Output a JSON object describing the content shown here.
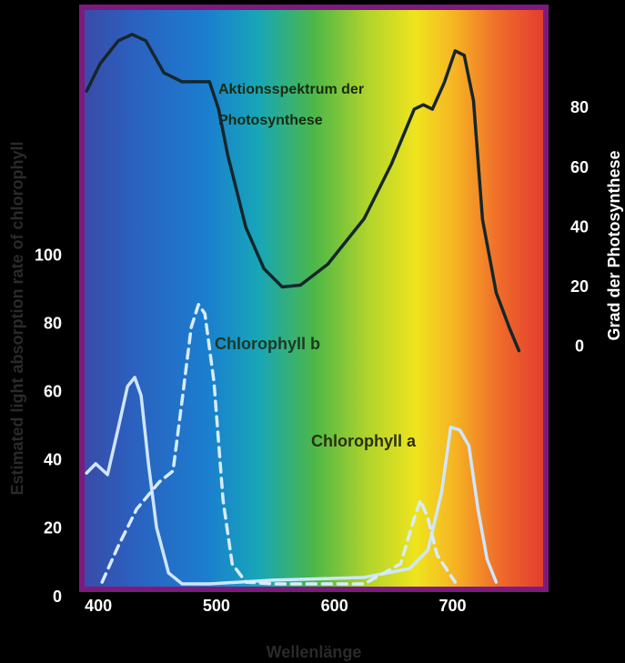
{
  "chart_data": {
    "type": "line",
    "y_label": "Estimated light absorption rate of chlorophyll",
    "y2_label": "Grad der Photosynthese",
    "x_label": "Wellenlänge",
    "annotations": {
      "action": [
        "Aktionsspektrum der",
        "Photosynthese"
      ],
      "chl_b": "Chlorophyll b",
      "chl_a": "Chlorophyll a"
    },
    "xlim": [
      386,
      779
    ],
    "xticks": [
      400,
      500,
      600,
      700
    ],
    "ylim": [
      0,
      173
    ],
    "yticks": [
      0,
      20,
      40,
      60,
      80,
      100
    ],
    "y2lim": [
      -84,
      114
    ],
    "y2ticks": [
      0,
      20,
      40,
      60,
      80
    ],
    "series": [
      {
        "name": "Chlorophyll a",
        "color": "#cfe6ff",
        "dash": false,
        "x": [
          390.0,
          397.7,
          407.7,
          417.0,
          424.7,
          430.8,
          436.2,
          442.4,
          449.3,
          459.4,
          470.9,
          494.1,
          548.0,
          625.1,
          663.7,
          679.1,
          690.7,
          698.4,
          706.1,
          713.8,
          721.5,
          729.2,
          736.9
        ],
        "values": [
          36.5,
          39.2,
          36.0,
          49.9,
          61.9,
          64.5,
          59.2,
          39.2,
          20.5,
          7.2,
          4.0,
          4.0,
          5.1,
          5.9,
          8.5,
          13.9,
          30.9,
          49.9,
          49.1,
          44.5,
          25.9,
          11.2,
          4.5
        ]
      },
      {
        "name": "Chlorophyll b",
        "color": "#d8ecff",
        "dash": true,
        "x": [
          403.1,
          417.0,
          432.4,
          451.7,
          463.2,
          470.9,
          478.6,
          484.8,
          490.2,
          497.9,
          505.6,
          513.3,
          524.9,
          548.0,
          625.1,
          656.0,
          667.5,
          672.9,
          679.1,
          686.8,
          702.2
        ],
        "values": [
          4.5,
          15.2,
          25.9,
          33.9,
          37.1,
          57.9,
          79.2,
          85.9,
          83.2,
          63.2,
          28.5,
          9.9,
          4.5,
          4.0,
          4.0,
          9.9,
          23.2,
          28.5,
          23.2,
          12.5,
          4.5
        ]
      },
      {
        "name": "Aktionsspektrum der Photosynthese",
        "color": "#16262a",
        "dash": false,
        "axis": "y2",
        "x": [
          390.0,
          401.5,
          417.0,
          428.5,
          440.1,
          455.5,
          470.9,
          494.1,
          501.8,
          509.5,
          524.9,
          540.3,
          555.7,
          571.2,
          594.3,
          625.1,
          648.3,
          667.5,
          675.2,
          682.9,
          692.9,
          702.2,
          709.9,
          717.7,
          725.4,
          736.9,
          748.5,
          756.2
        ],
        "values": [
          85.9,
          95.1,
          102.8,
          104.9,
          102.8,
          92.0,
          89.0,
          89.0,
          79.8,
          64.5,
          40.1,
          26.3,
          20.2,
          20.8,
          27.8,
          43.1,
          61.5,
          79.8,
          81.3,
          79.8,
          88.7,
          99.4,
          97.9,
          82.6,
          42.8,
          18.3,
          6.1,
          -1.2
        ]
      }
    ]
  }
}
